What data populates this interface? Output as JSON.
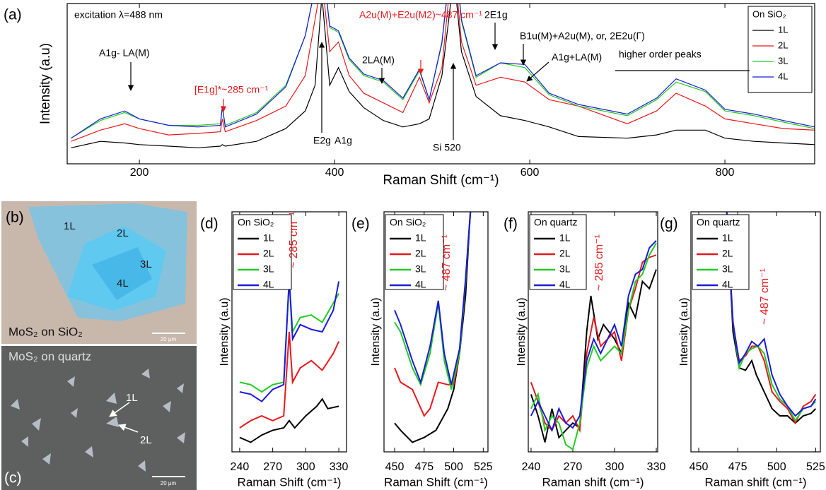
{
  "chart_data": [
    {
      "type": "line",
      "panel_label": "(a)",
      "x_label": "Raman Shift (cm⁻¹)",
      "y_label": "Intensity (a.u)",
      "xlim": [
        126,
        892
      ],
      "ylim": [
        0,
        100
      ],
      "xticks": [
        200,
        400,
        600,
        800
      ],
      "legend": "upper right",
      "legend_title": "On SiO₂",
      "annotations": [
        {
          "text": "excitation λ=488 nm",
          "color": "#000000"
        },
        {
          "text": "A1g- LA(M)",
          "color": "#000000"
        },
        {
          "text": "[E1g]*~285 cm⁻¹",
          "color": "#e8191c"
        },
        {
          "text": "E2g",
          "color": "#000000"
        },
        {
          "text": "A1g",
          "color": "#000000"
        },
        {
          "text": "A2u(M)+E2u(M2)~487 cm⁻¹",
          "color": "#e8191c"
        },
        {
          "text": "2LA(M)",
          "color": "#000000"
        },
        {
          "text": "Si 520",
          "color": "#000000"
        },
        {
          "text": "2E1g",
          "color": "#000000"
        },
        {
          "text": "B1u(M)+A2u(M), or, 2E2u(Γ)",
          "color": "#000000"
        },
        {
          "text": "A1g+LA(M)",
          "color": "#000000"
        },
        {
          "text": "higher order peaks",
          "color": "#000000"
        }
      ],
      "series": [
        {
          "name": "1L",
          "color": "#000000",
          "x": [
            130,
            160,
            185,
            200,
            230,
            260,
            283,
            285,
            288,
            320,
            350,
            370,
            380,
            387,
            395,
            404,
            415,
            430,
            450,
            470,
            487,
            497,
            510,
            518,
            522,
            530,
            545,
            570,
            595,
            620,
            650,
            700,
            730,
            750,
            780,
            800,
            830,
            860,
            892
          ],
          "values": [
            10,
            14,
            13,
            12,
            11,
            10,
            11,
            12,
            11,
            14,
            22,
            33,
            49,
            105,
            49,
            60,
            45,
            35,
            27,
            23,
            25,
            28,
            55,
            95,
            120,
            70,
            42,
            30,
            27,
            23,
            17,
            16,
            18,
            21,
            21,
            16,
            14,
            13,
            12
          ]
        },
        {
          "name": "2L",
          "color": "#e8191c",
          "x": [
            130,
            160,
            185,
            200,
            230,
            260,
            283,
            285,
            288,
            320,
            350,
            370,
            380,
            387,
            395,
            404,
            415,
            430,
            450,
            470,
            487,
            497,
            510,
            518,
            522,
            530,
            545,
            570,
            595,
            620,
            650,
            700,
            730,
            750,
            780,
            800,
            830,
            860,
            892
          ],
          "values": [
            14,
            21,
            25,
            22,
            18,
            19,
            20,
            28,
            20,
            27,
            36,
            55,
            90,
            115,
            70,
            76,
            55,
            44,
            38,
            32,
            54,
            38,
            60,
            110,
            130,
            76,
            49,
            54,
            51,
            40,
            36,
            25,
            33,
            44,
            36,
            28,
            25,
            22,
            21
          ]
        },
        {
          "name": "3L",
          "color": "#22cc22",
          "x": [
            130,
            160,
            185,
            200,
            230,
            260,
            283,
            285,
            288,
            320,
            350,
            370,
            380,
            387,
            395,
            404,
            415,
            430,
            450,
            470,
            487,
            497,
            510,
            518,
            522,
            530,
            545,
            570,
            595,
            620,
            650,
            700,
            730,
            750,
            780,
            800,
            830,
            860,
            892
          ],
          "values": [
            16,
            27,
            32,
            28,
            24,
            24,
            25,
            35,
            24,
            32,
            49,
            80,
            110,
            130,
            85,
            82,
            65,
            55,
            51,
            40,
            58,
            40,
            75,
            120,
            140,
            89,
            54,
            63,
            60,
            43,
            36,
            30,
            40,
            51,
            45,
            33,
            30,
            26,
            22
          ]
        },
        {
          "name": "4L",
          "color": "#1a1adb",
          "x": [
            130,
            160,
            185,
            200,
            230,
            260,
            283,
            285,
            288,
            320,
            350,
            370,
            380,
            387,
            395,
            404,
            415,
            430,
            450,
            470,
            487,
            497,
            510,
            518,
            522,
            530,
            545,
            570,
            595,
            620,
            650,
            700,
            730,
            750,
            780,
            800,
            830,
            860,
            892
          ],
          "values": [
            16,
            28,
            33,
            28,
            24,
            23,
            24,
            36,
            23,
            31,
            48,
            80,
            110,
            130,
            86,
            83,
            66,
            56,
            52,
            41,
            59,
            40,
            76,
            120,
            140,
            90,
            55,
            63,
            62,
            44,
            37,
            31,
            41,
            53,
            46,
            34,
            31,
            27,
            23
          ]
        }
      ]
    },
    {
      "type": "line",
      "panel_label": "(d)",
      "x_label": "Raman Shift (cm⁻¹)",
      "y_label": "Intensity (a.u)",
      "xlim": [
        233,
        337
      ],
      "ylim": [
        0,
        100
      ],
      "xticks": [
        240,
        270,
        300,
        330
      ],
      "legend": "upper left",
      "legend_title": "On SiO₂",
      "annotations": [
        {
          "text": "~ 285 cm⁻¹",
          "color": "#e8191c"
        }
      ],
      "series": [
        {
          "name": "1L",
          "color": "#000000",
          "x": [
            240,
            250,
            260,
            270,
            280,
            285,
            290,
            300,
            310,
            315,
            320,
            330
          ],
          "values": [
            6,
            4,
            7,
            9,
            10,
            13,
            10,
            15,
            19,
            22,
            18,
            19
          ]
        },
        {
          "name": "2L",
          "color": "#e8191c",
          "x": [
            240,
            250,
            260,
            270,
            280,
            285,
            288,
            295,
            305,
            315,
            325,
            330
          ],
          "values": [
            10,
            13,
            15,
            13,
            15,
            50,
            29,
            35,
            38,
            34,
            41,
            46
          ]
        },
        {
          "name": "3L",
          "color": "#22cc22",
          "x": [
            240,
            250,
            260,
            270,
            280,
            285,
            288,
            295,
            305,
            315,
            325,
            330
          ],
          "values": [
            29,
            28,
            25,
            28,
            29,
            72,
            50,
            56,
            57,
            54,
            62,
            66
          ]
        },
        {
          "name": "4L",
          "color": "#1a1adb",
          "x": [
            240,
            250,
            260,
            270,
            280,
            285,
            288,
            295,
            305,
            315,
            325,
            330
          ],
          "values": [
            25,
            24,
            21,
            26,
            28,
            72,
            47,
            53,
            51,
            50,
            59,
            71
          ]
        }
      ]
    },
    {
      "type": "line",
      "panel_label": "(e)",
      "x_label": "Raman Shift (cm⁻¹)",
      "y_label": "Intensity (a.u)",
      "xlim": [
        441,
        529
      ],
      "ylim": [
        0,
        100
      ],
      "xticks": [
        450,
        475,
        500,
        525
      ],
      "legend": "upper left",
      "legend_title": "On SiO₂",
      "annotations": [
        {
          "text": "~ 487 cm⁻¹",
          "color": "#e8191c"
        }
      ],
      "series": [
        {
          "name": "1L",
          "color": "#000000",
          "x": [
            450,
            455,
            465,
            475,
            485,
            495,
            500,
            505,
            510,
            513,
            515
          ],
          "values": [
            12,
            9,
            4,
            6,
            9,
            18,
            26,
            41,
            65,
            91,
            106
          ]
        },
        {
          "name": "2L",
          "color": "#e8191c",
          "x": [
            450,
            455,
            465,
            475,
            480,
            487,
            495,
            500,
            505,
            510,
            515
          ],
          "values": [
            35,
            29,
            26,
            15,
            18,
            29,
            28,
            28,
            41,
            71,
            106
          ]
        },
        {
          "name": "3L",
          "color": "#22cc22",
          "x": [
            450,
            455,
            465,
            472,
            480,
            487,
            492,
            498,
            505,
            510,
            515
          ],
          "values": [
            54,
            50,
            35,
            28,
            41,
            62,
            38,
            26,
            41,
            71,
            106
          ]
        },
        {
          "name": "4L",
          "color": "#1a1adb",
          "x": [
            450,
            455,
            465,
            472,
            480,
            487,
            492,
            498,
            505,
            510,
            515
          ],
          "values": [
            59,
            53,
            38,
            29,
            44,
            63,
            41,
            28,
            43,
            72,
            106
          ]
        }
      ]
    },
    {
      "type": "line",
      "panel_label": "(f)",
      "x_label": "Raman shift (cm⁻¹)",
      "y_label": "Intensity (a.u)",
      "xlim": [
        238,
        331
      ],
      "ylim": [
        0,
        100
      ],
      "xticks": [
        240,
        270,
        300,
        330
      ],
      "legend": "upper left",
      "legend_title": "On quartz",
      "annotations": [
        {
          "text": "~ 285 cm⁻¹",
          "color": "#e8191c"
        }
      ],
      "series": [
        {
          "name": "1L",
          "color": "#000000",
          "x": [
            240,
            245,
            250,
            255,
            260,
            265,
            270,
            275,
            280,
            283,
            288,
            292,
            300,
            305,
            310,
            315,
            320,
            325,
            330
          ],
          "values": [
            24,
            15,
            4,
            18,
            6,
            9,
            12,
            10,
            50,
            65,
            47,
            53,
            47,
            41,
            62,
            56,
            71,
            68,
            76
          ]
        },
        {
          "name": "2L",
          "color": "#e8191c",
          "x": [
            240,
            245,
            250,
            255,
            260,
            265,
            270,
            275,
            280,
            285,
            290,
            300,
            305,
            310,
            315,
            320,
            325,
            330
          ],
          "values": [
            29,
            21,
            12,
            9,
            15,
            12,
            15,
            9,
            41,
            56,
            44,
            50,
            38,
            59,
            68,
            79,
            81,
            82
          ]
        },
        {
          "name": "3L",
          "color": "#22cc22",
          "x": [
            240,
            245,
            250,
            255,
            260,
            265,
            270,
            275,
            280,
            285,
            290,
            300,
            305,
            310,
            315,
            320,
            325,
            330
          ],
          "values": [
            18,
            24,
            9,
            15,
            12,
            3,
            1,
            12,
            35,
            44,
            38,
            44,
            41,
            59,
            71,
            74,
            82,
            87
          ]
        },
        {
          "name": "4L",
          "color": "#1a1adb",
          "x": [
            240,
            245,
            250,
            255,
            260,
            265,
            270,
            275,
            280,
            285,
            290,
            300,
            305,
            310,
            315,
            320,
            325,
            330
          ],
          "values": [
            15,
            21,
            15,
            9,
            18,
            12,
            10,
            15,
            38,
            47,
            41,
            53,
            44,
            65,
            74,
            76,
            85,
            88
          ]
        }
      ]
    },
    {
      "type": "line",
      "panel_label": "(g)",
      "x_label": "Raman shift (cm⁻¹)",
      "y_label": "Intensity (a.u)",
      "xlim": [
        445,
        528
      ],
      "ylim": [
        0,
        100
      ],
      "xticks": [
        450,
        475,
        500,
        525
      ],
      "legend": "upper left",
      "legend_title": "On quartz",
      "annotations": [
        {
          "text": "~ 487 cm⁻¹",
          "color": "#e8191c"
        }
      ],
      "series": [
        {
          "name": "1L",
          "color": "#000000",
          "x": [
            468,
            472,
            476,
            480,
            484,
            487,
            492,
            497,
            502,
            507,
            512,
            517,
            522,
            525
          ],
          "values": [
            100,
            50,
            35,
            34,
            38,
            32,
            25,
            18,
            15,
            15,
            12,
            15,
            16,
            18
          ]
        },
        {
          "name": "2L",
          "color": "#e8191c",
          "x": [
            468,
            472,
            476,
            480,
            484,
            488,
            492,
            497,
            502,
            507,
            512,
            517,
            522,
            525
          ],
          "values": [
            97,
            53,
            38,
            40,
            44,
            44,
            38,
            25,
            21,
            18,
            12,
            19,
            21,
            24
          ]
        },
        {
          "name": "3L",
          "color": "#22cc22",
          "x": [
            468,
            472,
            476,
            480,
            484,
            488,
            492,
            497,
            502,
            507,
            512,
            517,
            522,
            525
          ],
          "values": [
            97,
            54,
            35,
            41,
            43,
            44,
            41,
            28,
            22,
            19,
            13,
            18,
            19,
            21
          ]
        },
        {
          "name": "4L",
          "color": "#1a1adb",
          "x": [
            468,
            472,
            476,
            480,
            484,
            488,
            492,
            497,
            502,
            507,
            512,
            517,
            522,
            525
          ],
          "values": [
            100,
            54,
            37,
            41,
            46,
            44,
            47,
            32,
            24,
            19,
            15,
            18,
            19,
            22
          ]
        }
      ]
    }
  ],
  "images": [
    {
      "panel_label": "(b)",
      "caption": "MoS₂ on SiO₂",
      "scale_bar": "20 µm",
      "labels": [
        "1L",
        "2L",
        "3L",
        "4L"
      ]
    },
    {
      "panel_label": "(c)",
      "caption": "MoS₂ on quartz",
      "scale_bar": "20 µm",
      "labels": [
        "1L",
        "2L"
      ]
    }
  ]
}
